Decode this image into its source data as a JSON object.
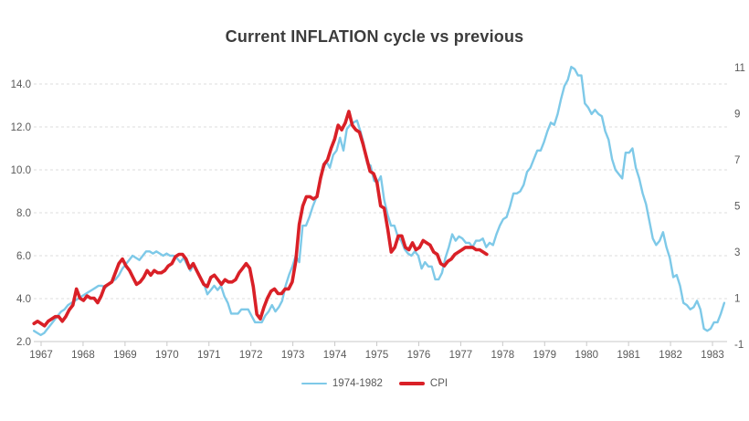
{
  "title": "Current INFLATION cycle vs previous",
  "colors": {
    "previous_cycle_line": "#7ec9e8",
    "cpi_line": "#d92027",
    "gridline": "#dcdcdc",
    "axis_line": "#c9c9c9",
    "axis_text": "#595959",
    "title_text": "#3c3c3c",
    "background": "#ffffff"
  },
  "legend": [
    {
      "label": "1974-1982",
      "color": "#7ec9e8",
      "thickness": 2.5
    },
    {
      "label": "CPI",
      "color": "#d92027",
      "thickness": 4
    }
  ],
  "chart_data": {
    "type": "line",
    "title": "Current INFLATION cycle vs previous",
    "grid": "horizontal dashed",
    "legend_position": "bottom center",
    "x_axis": {
      "tick_labels": [
        "1967",
        "1968",
        "1969",
        "1970",
        "1971",
        "1972",
        "1973",
        "1974",
        "1975",
        "1976",
        "1977",
        "1978",
        "1979",
        "1980",
        "1981",
        "1982",
        "1983"
      ],
      "range_years": [
        1966.8,
        1983.45
      ]
    },
    "left_axis": {
      "ticks": [
        14,
        12,
        10,
        8,
        6,
        4,
        2
      ],
      "tick_labels": [
        "14.0",
        "12.0",
        "10.0",
        "8.0",
        "6.0",
        "4.0",
        "2.0"
      ],
      "range": [
        2,
        15
      ]
    },
    "right_axis": {
      "ticks": [
        11,
        9,
        7,
        5,
        3,
        1,
        -1
      ],
      "tick_labels": [
        "11",
        "9",
        "7",
        "5",
        "3",
        "1",
        "-1"
      ],
      "range": [
        -1,
        11
      ]
    },
    "series": [
      {
        "name": "1974-1982",
        "axis": "left",
        "color": "#7ec9e8",
        "width": 2.4,
        "x_start_year": 1966.83,
        "x_end_year": 1983.28,
        "sampling": "monthly",
        "values": [
          2.5,
          2.4,
          2.3,
          2.4,
          2.6,
          2.8,
          3.0,
          3.2,
          3.4,
          3.5,
          3.7,
          3.8,
          3.9,
          4.0,
          4.1,
          4.2,
          4.3,
          4.4,
          4.5,
          4.6,
          4.6,
          4.5,
          4.7,
          4.8,
          4.9,
          5.1,
          5.4,
          5.6,
          5.8,
          6.0,
          5.9,
          5.8,
          6.0,
          6.2,
          6.2,
          6.1,
          6.2,
          6.1,
          6.0,
          6.1,
          6.0,
          6.0,
          5.9,
          5.7,
          5.9,
          5.6,
          5.3,
          5.6,
          5.3,
          5.0,
          4.7,
          4.2,
          4.4,
          4.6,
          4.4,
          4.6,
          4.1,
          3.8,
          3.3,
          3.3,
          3.3,
          3.5,
          3.5,
          3.5,
          3.2,
          2.9,
          2.9,
          2.9,
          3.2,
          3.4,
          3.7,
          3.4,
          3.6,
          3.9,
          4.6,
          5.1,
          5.5,
          6.0,
          5.7,
          7.4,
          7.4,
          7.8,
          8.3,
          8.7,
          9.4,
          10.0,
          10.4,
          10.1,
          10.7,
          10.9,
          11.5,
          10.9,
          11.9,
          12.1,
          12.2,
          12.3,
          11.8,
          11.2,
          10.3,
          10.2,
          9.5,
          9.4,
          9.7,
          8.6,
          7.9,
          7.4,
          7.4,
          6.9,
          6.7,
          6.3,
          6.1,
          6.0,
          6.2,
          6.0,
          5.4,
          5.7,
          5.5,
          5.5,
          4.9,
          4.9,
          5.2,
          5.9,
          6.4,
          7.0,
          6.7,
          6.9,
          6.8,
          6.6,
          6.6,
          6.4,
          6.7,
          6.7,
          6.8,
          6.4,
          6.6,
          6.5,
          7.0,
          7.4,
          7.7,
          7.8,
          8.3,
          8.9,
          8.9,
          9.0,
          9.3,
          9.9,
          10.1,
          10.5,
          10.9,
          10.9,
          11.3,
          11.8,
          12.2,
          12.1,
          12.6,
          13.3,
          13.9,
          14.2,
          14.8,
          14.7,
          14.4,
          14.4,
          13.1,
          12.9,
          12.6,
          12.8,
          12.6,
          12.5,
          11.8,
          11.4,
          10.5,
          10.0,
          9.8,
          9.6,
          10.8,
          10.8,
          11.0,
          10.1,
          9.6,
          8.9,
          8.4,
          7.6,
          6.8,
          6.5,
          6.7,
          7.1,
          6.4,
          5.9,
          5.0,
          5.1,
          4.6,
          3.8,
          3.7,
          3.5,
          3.6,
          3.9,
          3.5,
          2.6,
          2.5,
          2.6,
          2.9,
          2.9,
          3.3,
          3.8
        ]
      },
      {
        "name": "CPI",
        "axis": "right",
        "color": "#d92027",
        "width": 3.6,
        "x_start_year": 1966.83,
        "x_end_year": 1977.62,
        "sampling": "monthly",
        "values": [
          -0.1,
          0.0,
          -0.1,
          -0.2,
          0.0,
          0.1,
          0.2,
          0.2,
          0.0,
          0.2,
          0.5,
          0.7,
          1.4,
          1.0,
          0.9,
          1.1,
          1.0,
          1.0,
          0.8,
          1.1,
          1.5,
          1.6,
          1.7,
          2.1,
          2.5,
          2.7,
          2.4,
          2.2,
          1.9,
          1.6,
          1.7,
          1.9,
          2.2,
          2.0,
          2.2,
          2.1,
          2.1,
          2.2,
          2.4,
          2.5,
          2.8,
          2.9,
          2.9,
          2.7,
          2.3,
          2.5,
          2.2,
          1.9,
          1.6,
          1.5,
          1.9,
          2.0,
          1.8,
          1.6,
          1.8,
          1.7,
          1.7,
          1.8,
          2.1,
          2.3,
          2.5,
          2.3,
          1.5,
          0.3,
          0.1,
          0.6,
          1.0,
          1.3,
          1.4,
          1.2,
          1.2,
          1.4,
          1.4,
          1.7,
          2.6,
          4.2,
          5.0,
          5.4,
          5.4,
          5.3,
          5.4,
          6.2,
          6.8,
          7.0,
          7.5,
          7.9,
          8.5,
          8.3,
          8.6,
          9.1,
          8.5,
          8.3,
          8.2,
          7.7,
          7.1,
          6.5,
          6.4,
          6.0,
          5.0,
          4.9,
          4.0,
          3.0,
          3.2,
          3.7,
          3.7,
          3.2,
          3.1,
          3.4,
          3.1,
          3.2,
          3.5,
          3.4,
          3.3,
          3.0,
          2.9,
          2.5,
          2.4,
          2.6,
          2.7,
          2.9,
          3.0,
          3.1,
          3.2,
          3.2,
          3.2,
          3.1,
          3.1,
          3.0,
          2.9
        ]
      }
    ]
  }
}
